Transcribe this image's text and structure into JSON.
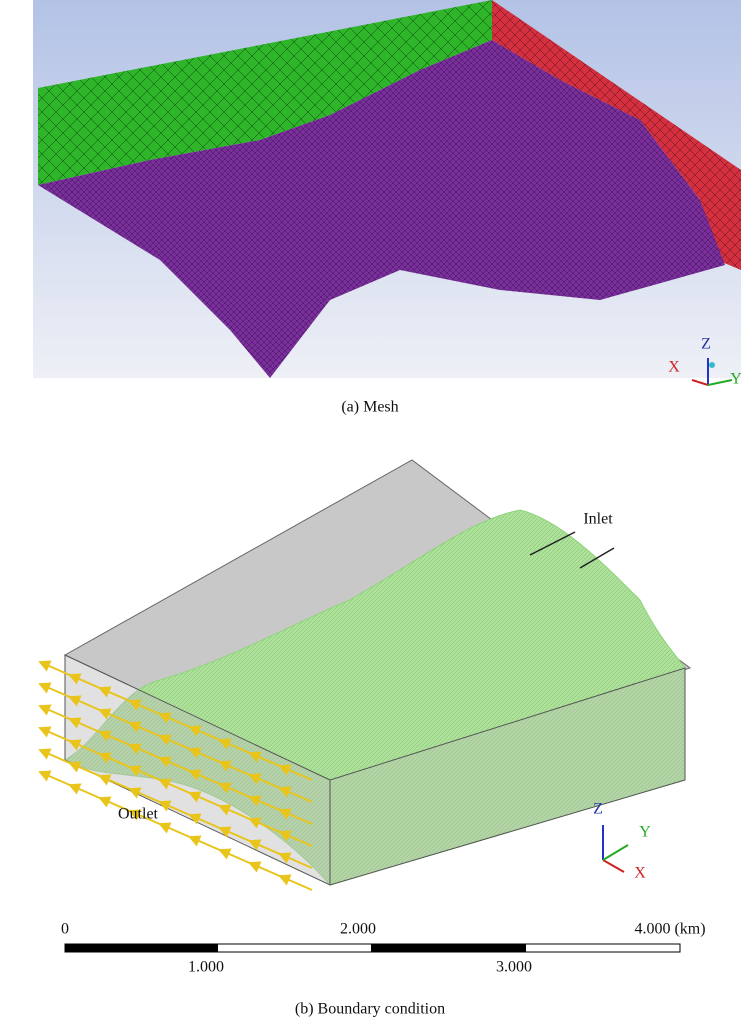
{
  "panel_a": {
    "caption": "(a) Mesh",
    "axes": {
      "x": "X",
      "y": "Y",
      "z": "Z"
    }
  },
  "panel_b": {
    "caption": "(b) Boundary condition",
    "labels": {
      "inlet": "Inlet",
      "outlet": "Outlet"
    },
    "axes": {
      "x": "X",
      "y": "Y",
      "z": "Z"
    },
    "scale_bar": {
      "top_labels": [
        "0",
        "2.000",
        "4.000 (km)"
      ],
      "bottom_labels": [
        "1.000",
        "3.000"
      ]
    }
  }
}
